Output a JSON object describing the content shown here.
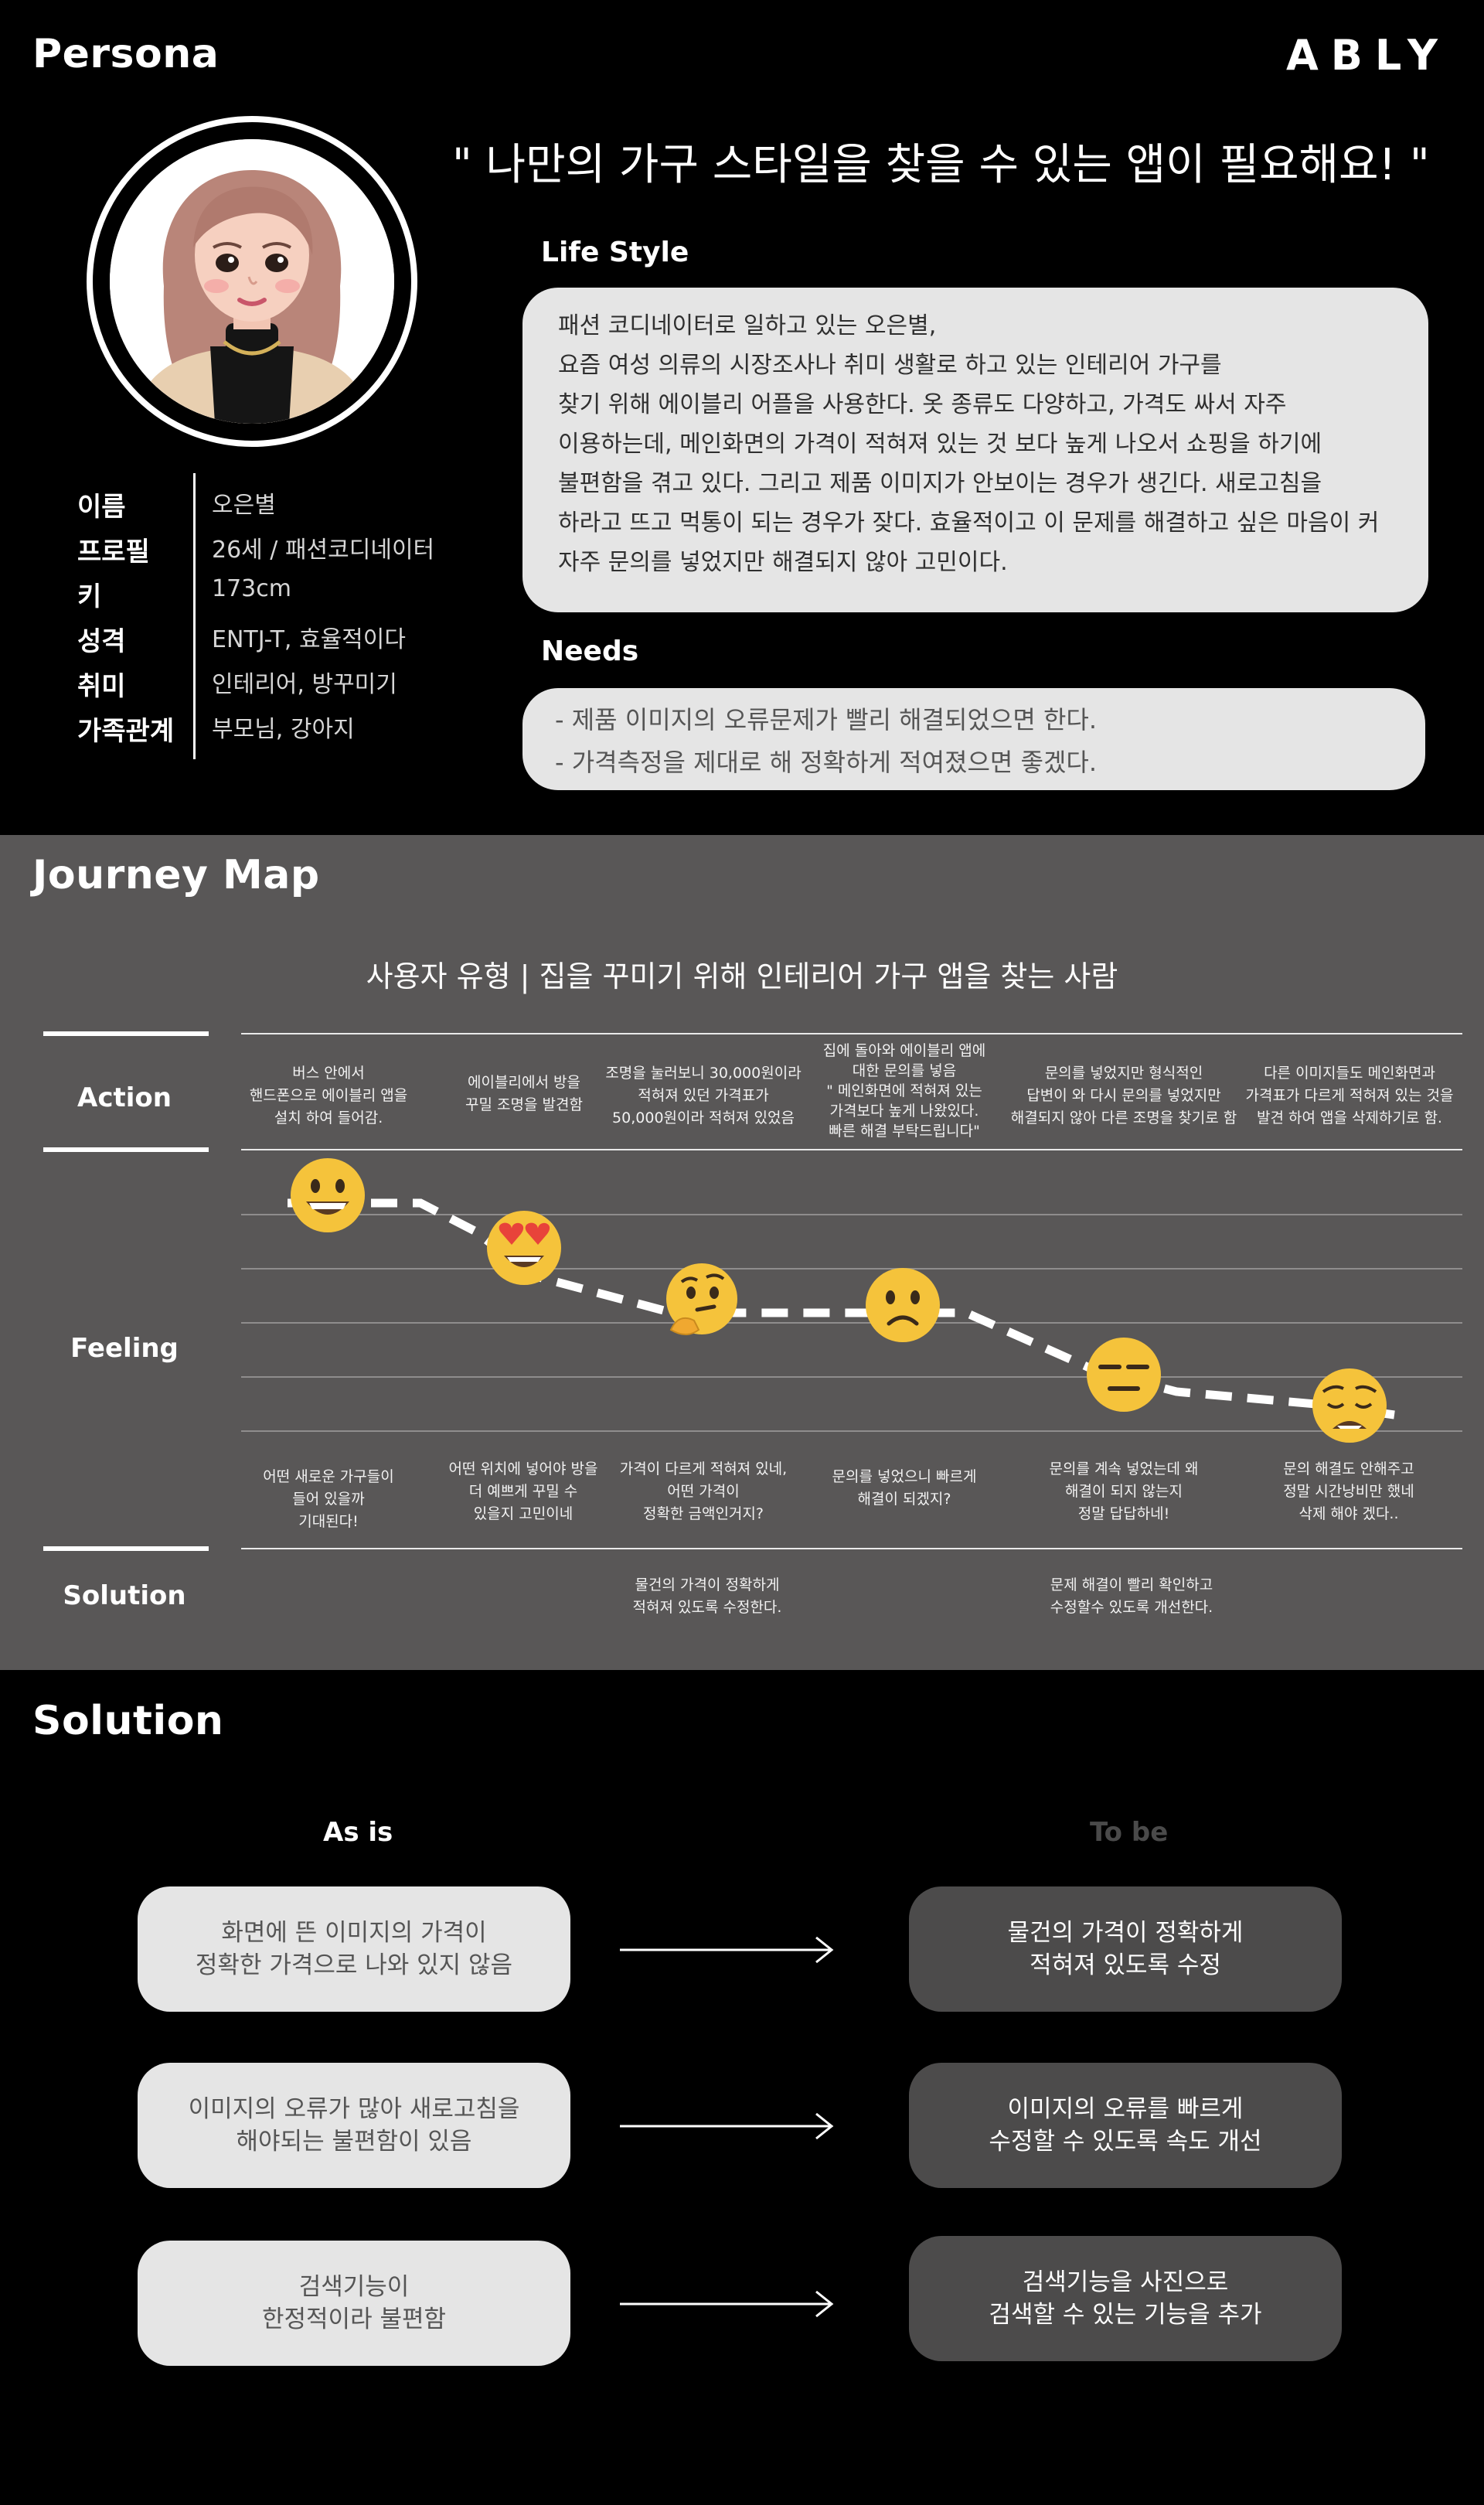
{
  "persona": {
    "title": "Persona",
    "brand": "ABLY",
    "quote": "\" 나만의 가구 스타일을 찾을 수 있는 앱이 필요해요! \"",
    "info": [
      {
        "label": "이름",
        "value": "오은별"
      },
      {
        "label": "프로필",
        "value": "26세 / 패션코디네이터"
      },
      {
        "label": "키",
        "value": "173cm"
      },
      {
        "label": "성격",
        "value": "ENTJ-T, 효율적이다"
      },
      {
        "label": "취미",
        "value": "인테리어, 방꾸미기"
      },
      {
        "label": "가족관계",
        "value": "부모님, 강아지"
      }
    ],
    "lifestyle_title": "Life Style",
    "lifestyle_lines": [
      "  패션 코디네이터로 일하고 있는 오은별,",
      "요즘 여성 의류의 시장조사나 취미 생활로 하고 있는 인테리어 가구를",
      "찾기 위해 에이블리 어플을 사용한다. 옷 종류도 다양하고, 가격도 싸서 자주",
      "이용하는데, 메인화면의 가격이 적혀져 있는 것 보다 높게 나오서 쇼핑을 하기에",
      "불편함을 겪고 있다. 그리고 제품 이미지가 안보이는 경우가 생긴다. 새로고침을",
      "하라고 뜨고 먹통이 되는 경우가 잦다. 효율적이고 이 문제를 해결하고 싶은 마음이 커",
      "자주 문의를 넣었지만 해결되지 않아 고민이다."
    ],
    "needs_title": "Needs",
    "needs_lines": [
      "- 제품 이미지의 오류문제가 빨리 해결되었으면 한다.",
      "- 가격측정을 제대로 해 정확하게 적여졌으면 좋겠다."
    ]
  },
  "journey": {
    "title": "Journey Map",
    "subtitle": "사용자 유형  |  집을 꾸미기 위해 인테리어 가구 앱을 찾는 사람",
    "rows": {
      "action": "Action",
      "feeling": "Feeling",
      "solution": "Solution"
    },
    "actions": [
      [
        "버스 안에서",
        "핸드폰으로 에이블리 앱을",
        "설치 하여 들어감."
      ],
      [
        "에이블리에서 방을",
        "꾸밀 조명을 발견함"
      ],
      [
        "조명을 눌러보니 30,000원이라",
        "적혀져 있던 가격표가",
        "50,000원이라 적혀져 있었음"
      ],
      [
        "집에 돌아와 에이블리 앱에",
        "대한 문의를 넣음",
        "\" 메인화면에 적혀져 있는",
        "가격보다 높게 나왔있다.",
        "빠른 해결 부탁드립니다\""
      ],
      [
        "문의를 넣었지만 형식적인",
        "답변이 와 다시 문의를 넣었지만",
        "해결되지 않아 다른 조명을 찾기로 함"
      ],
      [
        "다른 이미지들도 메인화면과",
        "가격표가 다르게 적혀져 있는 것을",
        "발견 하여 앱을 삭제하기로 함."
      ]
    ],
    "emotion_icons": [
      "grinning-face-icon",
      "heart-eyes-face-icon",
      "thinking-face-icon",
      "frowning-face-icon",
      "expressionless-face-icon",
      "weary-face-icon"
    ],
    "feelings": [
      [
        "어떤 새로운 가구들이",
        "들어 있을까",
        "기대된다!"
      ],
      [
        "어떤 위치에 넣어야 방을",
        "더 예쁘게 꾸밀 수",
        "있을지 고민이네"
      ],
      [
        "가격이 다르게 적혀져 있네,",
        "어떤 가격이",
        "정확한 금액인거지?"
      ],
      [
        "문의를 넣었으니 빠르게",
        "해결이 되겠지?"
      ],
      [
        "문의를 계속 넣었는데 왜",
        "해결이 되지 않는지",
        "정말 답답하네!"
      ],
      [
        "문의 해결도 안해주고",
        "정말 시간낭비만 했네",
        "삭제 해야 겠다.."
      ]
    ],
    "solutions": [
      [
        "물건의 가격이 정확하게",
        "적혀져 있도록 수정한다."
      ],
      [
        "문제 해결이 빨리 확인하고",
        "수정할수 있도록 개선한다."
      ]
    ]
  },
  "solution": {
    "title": "Solution",
    "asis_head": "As is",
    "tobe_head": "To be",
    "pairs": [
      {
        "asis": [
          "화면에 뜬 이미지의 가격이",
          "정확한 가격으로 나와 있지 않음"
        ],
        "tobe": [
          "물건의 가격이 정확하게",
          "적혀져 있도록 수정"
        ]
      },
      {
        "asis": [
          "이미지의 오류가 많아 새로고침을",
          "해야되는 불편함이 있음"
        ],
        "tobe": [
          "이미지의 오류를 빠르게",
          "수정할 수 있도록 속도 개선"
        ]
      },
      {
        "asis": [
          "검색기능이",
          "한정적이라 불편함"
        ],
        "tobe": [
          "검색기능을 사진으로",
          "검색할 수 있는 기능을 추가"
        ]
      }
    ]
  },
  "colors": {
    "background": "#000000",
    "journey_bg": "#595757",
    "card_light": "#e5e5e5",
    "card_dark": "#4c4b4b",
    "emoji_yellow": "#f5c33b"
  }
}
